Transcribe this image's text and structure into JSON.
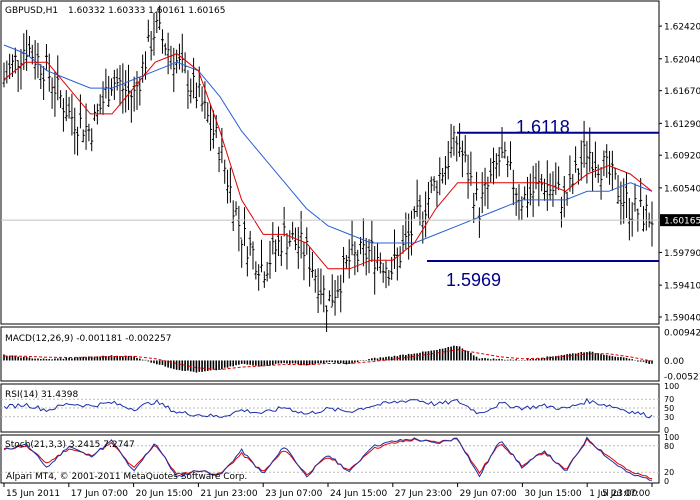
{
  "chart_data": [
    {
      "type": "bar",
      "title": "GBPUSD,H1",
      "ohlc_text": "1.60332 1.60333 1.60161 1.60165",
      "y_ticks": [
        "1.62420",
        "1.62040",
        "1.61670",
        "1.61290",
        "1.60920",
        "1.60540",
        "1.60165",
        "1.59790",
        "1.59410",
        "1.59040"
      ],
      "ylim": [
        1.5897,
        1.627
      ],
      "last_price": 1.60165,
      "levels": [
        {
          "label": "1.6118",
          "value": 1.6118
        },
        {
          "label": "1.5969",
          "value": 1.5969
        }
      ],
      "series": [
        {
          "values": [
            1.618,
            1.622,
            1.619,
            1.614,
            1.612,
            1.618,
            1.616,
            1.624,
            1.62,
            1.616,
            1.61,
            1.6,
            1.596,
            1.6,
            1.598,
            1.592,
            1.597,
            1.598,
            1.596,
            1.601,
            1.606,
            1.611,
            1.603,
            1.609,
            1.604,
            1.606,
            1.604,
            1.61,
            1.607,
            1.603,
            1.602
          ]
        },
        {
          "values": [
            1.618,
            1.62,
            1.62,
            1.617,
            1.614,
            1.614,
            1.617,
            1.62,
            1.621,
            1.619,
            1.612,
            1.604,
            1.6,
            1.6,
            1.599,
            1.596,
            1.596,
            1.597,
            1.597,
            1.599,
            1.603,
            1.606,
            1.606,
            1.606,
            1.606,
            1.606,
            1.605,
            1.607,
            1.608,
            1.607,
            1.605
          ]
        },
        {
          "values": [
            1.622,
            1.621,
            1.619,
            1.618,
            1.617,
            1.617,
            1.618,
            1.619,
            1.62,
            1.619,
            1.616,
            1.612,
            1.609,
            1.606,
            1.603,
            1.601,
            1.6,
            1.599,
            1.599,
            1.599,
            1.6,
            1.601,
            1.602,
            1.603,
            1.604,
            1.604,
            1.604,
            1.605,
            1.605,
            1.606,
            1.605
          ]
        }
      ]
    },
    {
      "type": "bar",
      "title": "MACD(12,26,9) -0.001181 -0.002257",
      "y_ticks": [
        "0.00942",
        "0.00",
        "-0.00521"
      ],
      "ylim": [
        -0.0065,
        0.0108
      ],
      "series": [
        {
          "values": [
            0.0018,
            0.001,
            0.0004,
            0.0008,
            0.0012,
            0.0016,
            0.0014,
            -0.001,
            -0.003,
            -0.004,
            -0.003,
            -0.0012,
            -0.0018,
            -0.0008,
            -0.0016,
            -0.0006,
            -0.0012,
            0.0006,
            0.0014,
            0.0024,
            0.0034,
            0.005,
            0.0008,
            0.0004,
            0.0002,
            0.001,
            0.002,
            0.003,
            0.0018,
            0.0004,
            -0.0012
          ]
        },
        {
          "values": [
            0.0015,
            0.0014,
            0.0011,
            0.001,
            0.0011,
            0.0013,
            0.0014,
            0.0006,
            -0.001,
            -0.0025,
            -0.003,
            -0.0022,
            -0.0018,
            -0.0013,
            -0.0014,
            -0.001,
            -0.001,
            -0.0004,
            0.0004,
            0.0014,
            0.0024,
            0.0036,
            0.0024,
            0.0012,
            0.0006,
            0.0008,
            0.0014,
            0.0022,
            0.0022,
            0.0012,
            -0.0002
          ]
        }
      ]
    },
    {
      "type": "line",
      "title": "RSI(14) 31.4398",
      "y_ticks": [
        "100",
        "70",
        "50",
        "30",
        "0"
      ],
      "ylim": [
        0,
        100
      ],
      "series": [
        {
          "values": [
            52,
            58,
            45,
            60,
            55,
            62,
            48,
            65,
            40,
            35,
            30,
            45,
            38,
            52,
            36,
            48,
            42,
            55,
            62,
            70,
            58,
            66,
            38,
            60,
            50,
            55,
            48,
            66,
            56,
            42,
            31
          ]
        }
      ]
    },
    {
      "type": "line",
      "title": "Stoch(21,3,3) 3.2415 7.2747",
      "y_ticks": [
        "100",
        "80",
        "20",
        "0"
      ],
      "ylim": [
        0,
        100
      ],
      "series": [
        {
          "values": [
            70,
            85,
            30,
            80,
            55,
            92,
            20,
            88,
            8,
            25,
            12,
            70,
            15,
            80,
            10,
            60,
            20,
            78,
            90,
            96,
            85,
            98,
            10,
            95,
            30,
            70,
            20,
            98,
            50,
            15,
            3
          ]
        },
        {
          "values": [
            72,
            80,
            40,
            74,
            58,
            86,
            28,
            84,
            14,
            24,
            15,
            62,
            20,
            72,
            15,
            55,
            24,
            72,
            86,
            94,
            88,
            96,
            18,
            88,
            34,
            66,
            24,
            94,
            56,
            20,
            7
          ]
        }
      ]
    }
  ],
  "x_labels": [
    "15 Jun 2011",
    "17 Jun 07:00",
    "20 Jun 15:00",
    "21 Jun 23:00",
    "23 Jun 07:00",
    "24 Jun 15:00",
    "27 Jun 23:00",
    "29 Jun 07:00",
    "30 Jun 15:00",
    "1 Jul 23:00",
    "5 Jul 07:00"
  ],
  "copyright": "Alpari MT4, © 2001-2011 MetaQuotes Software Corp."
}
